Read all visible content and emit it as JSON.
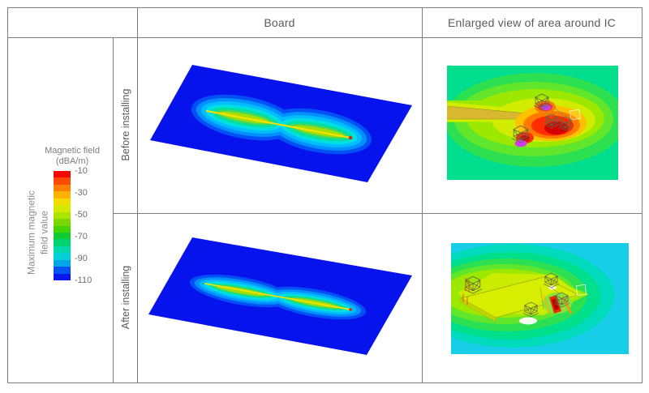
{
  "header": {
    "board": "Board",
    "enlarged": "Enlarged view of area around IC"
  },
  "rows": [
    {
      "label": "Before installing"
    },
    {
      "label": "After installing"
    }
  ],
  "legend": {
    "axis_label_line1": "Maximum magnetic",
    "axis_label_line2": "field value",
    "title_line1": "Magnetic field",
    "title_line2": "(dBA/m)",
    "ticks": [
      "-10",
      "-30",
      "-50",
      "-70",
      "-90",
      "-110"
    ],
    "colorbar_colors": [
      "#f50800",
      "#fc4a00",
      "#ff8000",
      "#ffb000",
      "#f2dc00",
      "#d4e800",
      "#aae400",
      "#7ad800",
      "#44d400",
      "#10cc30",
      "#00d470",
      "#00d8aa",
      "#00d0d8",
      "#00a8e8",
      "#0054f2",
      "#0a18ee"
    ]
  },
  "colors": {
    "border": "#7d7d7d",
    "board_base": "#0713ed",
    "hot_red": "#ff2d00",
    "magenta_spot": "#cf3af2",
    "background_teal": "#00de8e",
    "background_cyan": "#17cde7"
  }
}
